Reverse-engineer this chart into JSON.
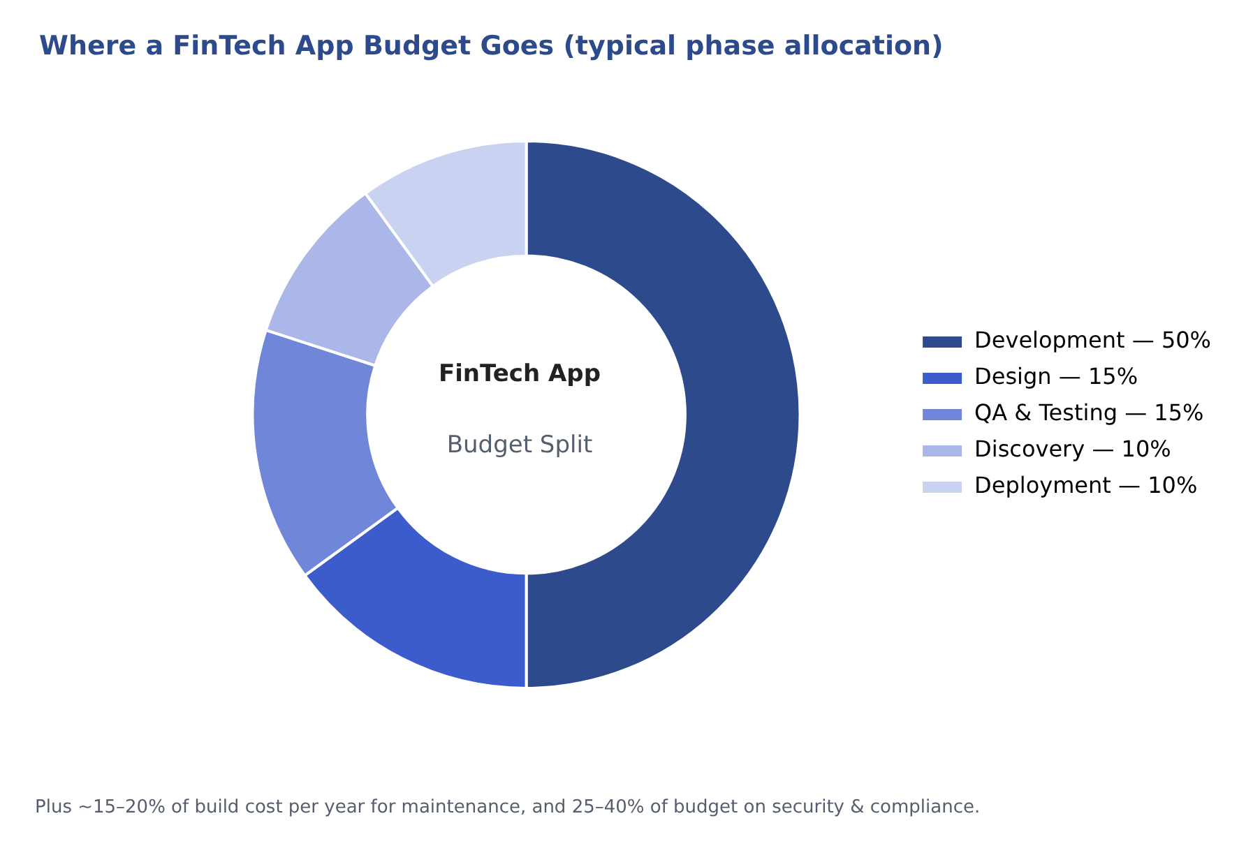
{
  "chart_data": {
    "type": "donut",
    "title": "Where a FinTech App Budget Goes (typical phase allocation)",
    "categories": [
      "Development — 50%",
      "Design — 15%",
      "QA & Testing — 15%",
      "Discovery — 10%",
      "Deployment — 10%"
    ],
    "values": [
      50,
      15,
      15,
      10,
      10
    ],
    "colors": [
      "#2d4b8c",
      "#3d5ccb",
      "#7086d8",
      "#abb7e9",
      "#c9d2f0"
    ],
    "legend": "right",
    "annotations": [
      "FinTech App",
      "Budget Split",
      "Plus ~15–20% of build cost per year for maintenance, and 25–40% of budget on security & compliance."
    ]
  }
}
